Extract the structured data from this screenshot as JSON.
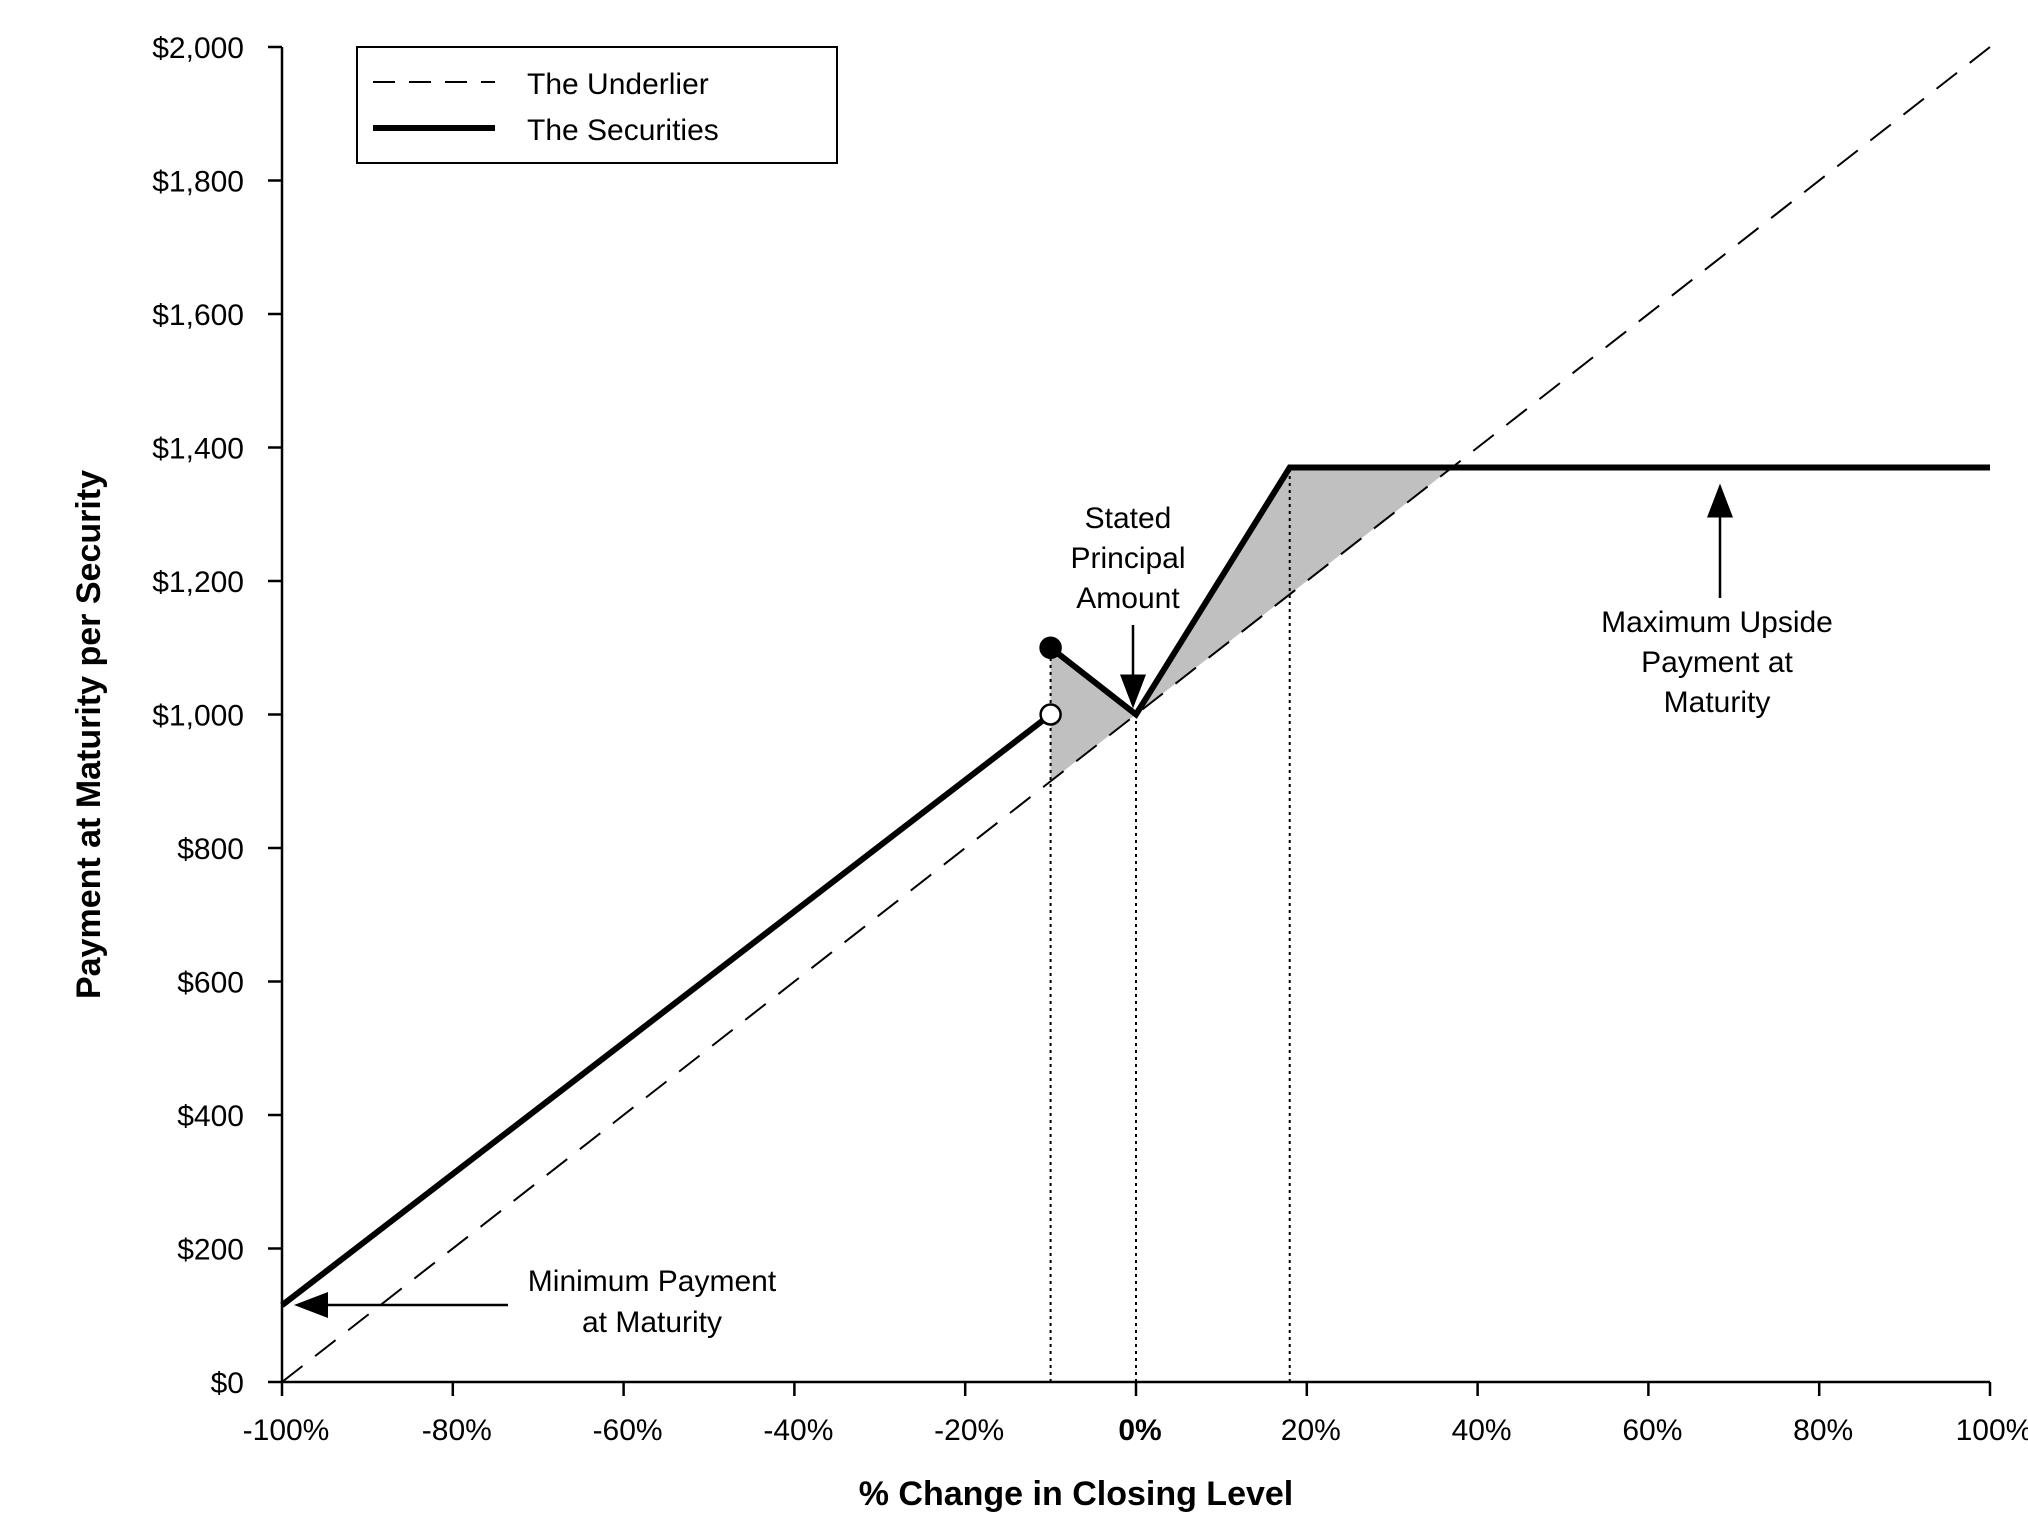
{
  "chart_data": {
    "type": "line",
    "title": "",
    "xlabel": "% Change in Closing Level",
    "ylabel": "Payment at Maturity per Security",
    "xlim": [
      -100,
      100
    ],
    "ylim": [
      0,
      2000
    ],
    "x_ticks": [
      -100,
      -80,
      -60,
      -40,
      -20,
      0,
      20,
      40,
      60,
      80,
      100
    ],
    "x_tick_labels": [
      "-100%",
      "-80%",
      "-60%",
      "-40%",
      "-20%",
      "0%",
      "20%",
      "40%",
      "60%",
      "80%",
      "100%"
    ],
    "y_ticks": [
      0,
      200,
      400,
      600,
      800,
      1000,
      1200,
      1400,
      1600,
      1800,
      2000
    ],
    "y_tick_labels": [
      "$0",
      "$200",
      "$400",
      "$600",
      "$800",
      "$1,000",
      "$1,200",
      "$1,400",
      "$1,600",
      "$1,800",
      "$2,000"
    ],
    "grid": false,
    "legend": {
      "position": "top-left",
      "entries": [
        "The Underlier",
        "The Securities"
      ]
    },
    "series": [
      {
        "name": "The Underlier",
        "style": "dashed",
        "points": [
          [
            -100,
            0
          ],
          [
            100,
            2000
          ]
        ]
      },
      {
        "name": "The Securities",
        "style": "solid",
        "segments": [
          [
            [
              -100,
              115
            ],
            [
              -10,
              1000
            ]
          ],
          [
            [
              -10,
              1100
            ],
            [
              0,
              1000
            ],
            [
              18,
              1370
            ],
            [
              100,
              1370
            ]
          ]
        ]
      }
    ],
    "markers": [
      {
        "x": -10,
        "y": 1100,
        "fill": "filled"
      },
      {
        "x": -10,
        "y": 1000,
        "fill": "open"
      }
    ],
    "reference_lines_x": [
      -10,
      0,
      18
    ],
    "shaded_regions": [
      [
        [
          -10,
          1100
        ],
        [
          0,
          1000
        ],
        [
          -10,
          900
        ]
      ],
      [
        [
          0,
          1000
        ],
        [
          18,
          1370
        ],
        [
          37,
          1370
        ],
        [
          18,
          1180
        ]
      ]
    ],
    "annotations": {
      "stated_principal": "Stated Principal Amount",
      "max_upside": "Maximum Upside Payment at Maturity",
      "min_payment": "Minimum Payment at Maturity"
    },
    "colors": {
      "line": "#000000",
      "shade": "#c0c0c0",
      "background": "#ffffff"
    }
  }
}
